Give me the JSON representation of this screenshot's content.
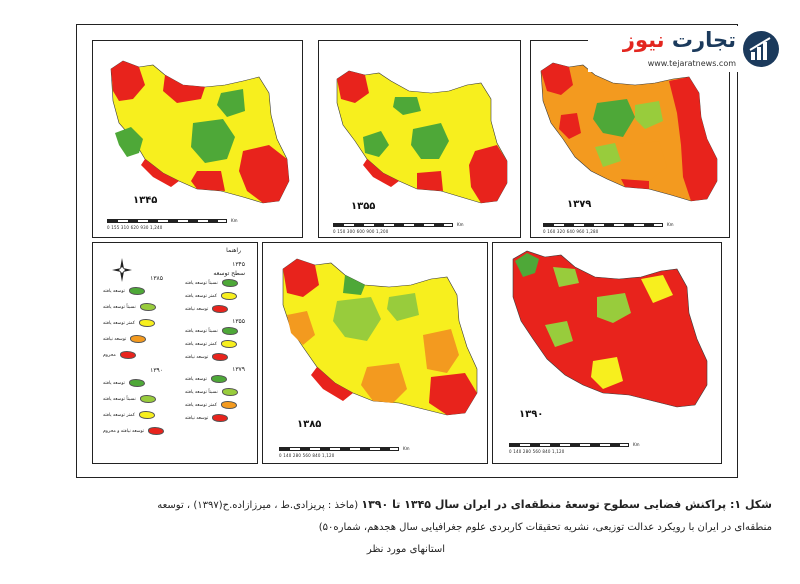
{
  "brand": {
    "name_part1": "تجارت",
    "name_part2": "نیوز",
    "url": "www.tejaratnews.com",
    "colors": {
      "blue": "#1b3a5c",
      "red": "#e3261f"
    }
  },
  "colors": {
    "red": "#e8231c",
    "orange": "#f39a1f",
    "yellow": "#f7ef1e",
    "light_green": "#98cc3c",
    "green": "#4ea838",
    "outline": "#3a3a3a"
  },
  "maps": [
    {
      "year": "۱۳۴۵",
      "classes": [
        "green",
        "yellow",
        "red"
      ]
    },
    {
      "year": "۱۳۵۵",
      "classes": [
        "green",
        "yellow",
        "red"
      ]
    },
    {
      "year": "۱۳۷۹",
      "classes": [
        "green",
        "light_green",
        "orange",
        "red"
      ]
    },
    {
      "year": "۱۳۸۵",
      "classes": [
        "green",
        "light_green",
        "yellow",
        "orange",
        "red"
      ]
    },
    {
      "year": "۱۳۹۰",
      "classes": [
        "green",
        "light_green",
        "yellow",
        "red"
      ]
    }
  ],
  "scale_bar": {
    "ticks_a": "0   155   310          620          930         1,240",
    "ticks_b": "0   150   300          600          900         1,200",
    "ticks_c": "0   160   320          640          960         1,280",
    "ticks_d": "0   140   280          560          840         1,120",
    "unit": "Km"
  },
  "legend": {
    "heading": "راهنما",
    "col_left": [
      {
        "title": "۱۳۸۵"
      },
      {
        "label": "توسعه یافته",
        "color": "green"
      },
      {
        "label": "نسبتاً توسعه یافته",
        "color": "light_green"
      },
      {
        "label": "کمتر توسعه یافته",
        "color": "yellow"
      },
      {
        "label": "توسعه نیافته",
        "color": "orange"
      },
      {
        "label": "محروم",
        "color": "red"
      },
      {
        "title": "۱۳۹۰"
      },
      {
        "label": "توسعه یافته",
        "color": "green"
      },
      {
        "label": "نسبتاً توسعه یافته",
        "color": "light_green"
      },
      {
        "label": "کمتر توسعه یافته",
        "color": "yellow"
      },
      {
        "label": "توسعه نیافته و محروم",
        "color": "red"
      }
    ],
    "col_right": [
      {
        "title": "۱۳۴۵"
      },
      {
        "title": "سطح توسعه"
      },
      {
        "label": "نسبتاً توسعه یافته",
        "color": "green"
      },
      {
        "label": "کمتر توسعه یافته",
        "color": "yellow"
      },
      {
        "label": "توسعه نیافته",
        "color": "red"
      },
      {
        "title": "۱۳۵۵"
      },
      {
        "label": "نسبتاً توسعه یافته",
        "color": "green"
      },
      {
        "label": "کمتر توسعه یافته",
        "color": "yellow"
      },
      {
        "label": "توسعه نیافته",
        "color": "red"
      },
      {
        "title": "۱۳۷۹"
      },
      {
        "label": "توسعه یافته",
        "color": "green"
      },
      {
        "label": "نسبتاً توسعه یافته",
        "color": "light_green"
      },
      {
        "label": "کمتر توسعه یافته",
        "color": "orange"
      },
      {
        "label": "توسعه نیافته",
        "color": "red"
      }
    ]
  },
  "caption": {
    "line1_bold": "شکل ۱: پراکنش فضایی سطوح توسعهٔ منطقه‌ای در ایران سال ۱۳۴۵ تا ۱۳۹۰",
    "line1_rest": " (ماخذ : پریزادی.ط ، میرزازاده.ح(۱۳۹۷) ، توسعه",
    "line2": "منطقه‌ای در ایران با رویکرد عدالت توزیعی، نشریه تحقیقات کاربردی علوم جغرافیایی سال هجدهم، شماره۵۰)",
    "line3": "استانهای مورد نظر"
  }
}
